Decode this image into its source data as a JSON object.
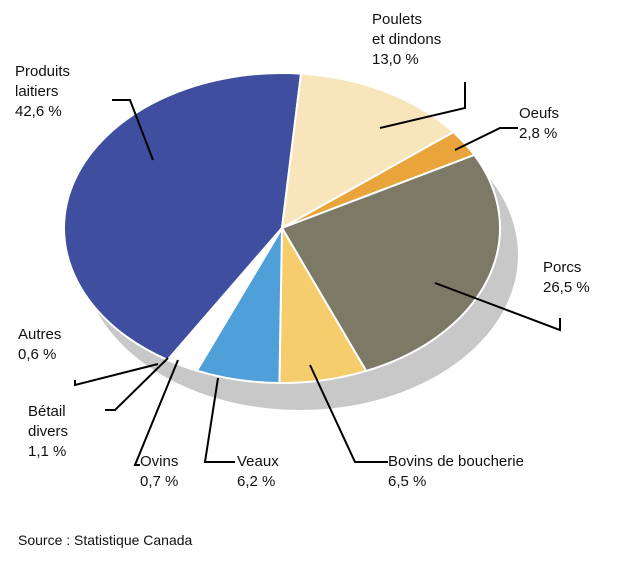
{
  "chart_data": {
    "type": "pie",
    "categories": [
      "Produits\nlaitiers",
      "Poulets\net dindons",
      "Oeufs",
      "Porcs",
      "Bovins de boucherie",
      "Veaux",
      "Ovins",
      "Bétail\ndivers",
      "Autres"
    ],
    "values": [
      42.6,
      13.0,
      2.8,
      26.5,
      6.5,
      6.2,
      0.7,
      1.1,
      0.6
    ],
    "value_labels": [
      "42,6 %",
      "13,0 %",
      "2,8 %",
      "26,5 %",
      "6,5 %",
      "6,2 %",
      "0,7 %",
      "1,1 %",
      "0,6 %"
    ],
    "colors": [
      "#3f4e9f",
      "#f8e5bb",
      "#e9a53b",
      "#7c7a66",
      "#f6cd6c",
      "#4f9fd8",
      "#ffffff",
      "#ffffff",
      "#ffffff"
    ],
    "source": "Source : Statistique Canada"
  }
}
